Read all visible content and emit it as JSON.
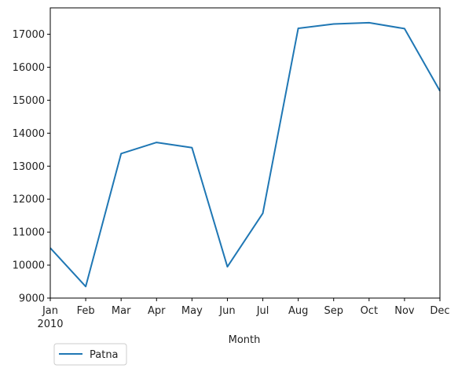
{
  "chart_data": {
    "type": "line",
    "title": "",
    "xlabel": "Month",
    "ylabel": "",
    "categories": [
      "Jan",
      "Feb",
      "Mar",
      "Apr",
      "May",
      "Jun",
      "Jul",
      "Aug",
      "Sep",
      "Oct",
      "Nov",
      "Dec"
    ],
    "year_label": "2010",
    "series": [
      {
        "name": "Patna",
        "color": "#1f77b4",
        "values": [
          10520,
          9350,
          13380,
          13720,
          13560,
          9950,
          11570,
          17180,
          17310,
          17350,
          17170,
          15280
        ]
      }
    ],
    "ylim": [
      9000,
      17800
    ],
    "yticks": [
      9000,
      10000,
      11000,
      12000,
      13000,
      14000,
      15000,
      16000,
      17000
    ],
    "grid": false,
    "legend": "bottom-left"
  }
}
